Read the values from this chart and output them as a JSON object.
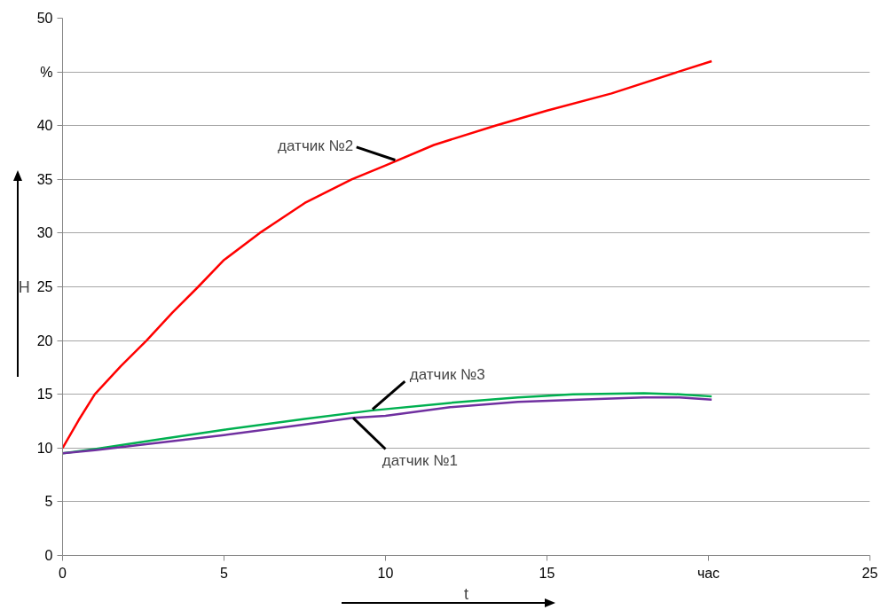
{
  "chart_data": {
    "type": "line",
    "xlabel": "t",
    "ylabel": "H",
    "xlim": [
      0,
      25
    ],
    "xticks": [
      0,
      5,
      10,
      15,
      {
        "value": 20,
        "label": "час"
      },
      25
    ],
    "ylim": [
      0,
      50
    ],
    "yticks": [
      0,
      5,
      10,
      15,
      20,
      25,
      30,
      35,
      40,
      {
        "value": 45,
        "label": "%"
      },
      50
    ],
    "grid": "y",
    "marker": "none",
    "line_style": "solid",
    "series": [
      {
        "color": "#ff0000",
        "x": [
          0,
          0.5,
          1,
          1.8,
          2.6,
          3.4,
          4.2,
          5,
          6.1,
          7.5,
          8.95,
          10,
          11.5,
          13.4,
          15,
          17,
          19.05,
          20.1
        ],
        "values": [
          10,
          12.6,
          15,
          17.6,
          20,
          22.6,
          25,
          27.5,
          30,
          32.8,
          35,
          36.3,
          38.2,
          40,
          41.4,
          43,
          45,
          46
        ]
      },
      {
        "color": "#00b050",
        "x": [
          0,
          1,
          3,
          5,
          7.5,
          9.6,
          12,
          14.1,
          15.8,
          18,
          19.1,
          20.1
        ],
        "values": [
          9.5,
          9.9,
          10.8,
          11.7,
          12.7,
          13.5,
          14.2,
          14.7,
          15.0,
          15.1,
          15.0,
          14.8
        ]
      },
      {
        "color": "#7030a0",
        "x": [
          0,
          1,
          3,
          5,
          7.5,
          9,
          10,
          12,
          14.1,
          16,
          18,
          19.1,
          20.1
        ],
        "values": [
          9.5,
          9.8,
          10.5,
          11.2,
          12.2,
          12.8,
          13.0,
          13.8,
          14.3,
          14.5,
          14.7,
          14.7,
          14.5
        ]
      }
    ],
    "annotations": [
      {
        "text": "датчик №2",
        "x": 10.3,
        "y": 36.8
      },
      {
        "text": "датчик №3",
        "x": 9.6,
        "y": 13.6
      },
      {
        "text": "датчик №1",
        "x": 9.0,
        "y": 12.8
      }
    ]
  }
}
